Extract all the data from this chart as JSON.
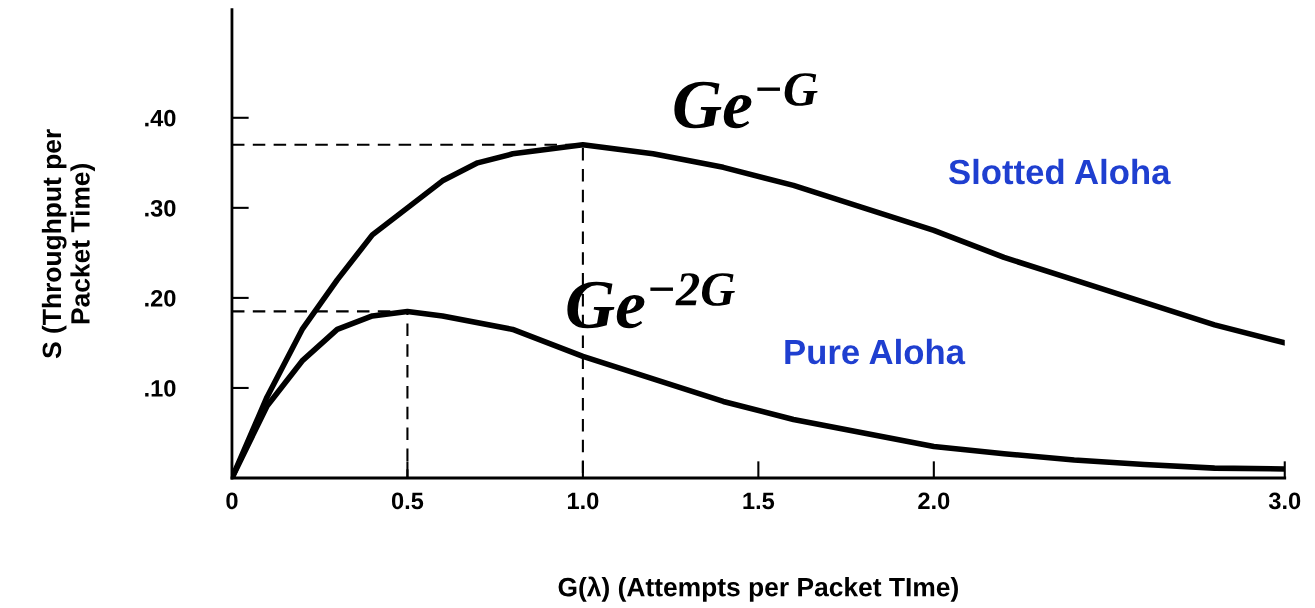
{
  "chart_data": {
    "type": "line",
    "xlabel": "G(λ) (Attempts per Packet TIme)",
    "ylabel": "S (Throughput per\nPacket Time)",
    "xlim": [
      0,
      3.0
    ],
    "ylim": [
      0,
      0.52
    ],
    "xticks": [
      0,
      0.5,
      {
        "value": 1.0,
        "label": "1.0"
      },
      1.5,
      {
        "value": 2.0,
        "label": "2.0"
      },
      {
        "value": 3.0,
        "label": "3.0"
      }
    ],
    "yticks": [
      {
        "value": 0.1,
        "label": ".10"
      },
      {
        "value": 0.2,
        "label": ".20"
      },
      {
        "value": 0.3,
        "label": ".30"
      },
      {
        "value": 0.4,
        "label": ".40"
      }
    ],
    "grid": false,
    "legend": false,
    "marker": "none",
    "series": [
      {
        "color": "#000000",
        "line_style": "solid",
        "x": [
          0,
          0.1,
          0.2,
          0.3,
          0.4,
          0.5,
          0.6,
          0.7,
          0.8,
          1.0,
          1.2,
          1.4,
          1.6,
          1.8,
          2.0,
          2.2,
          2.4,
          2.6,
          2.8,
          3.0
        ],
        "values": [
          0,
          0.09,
          0.165,
          0.22,
          0.27,
          0.3,
          0.33,
          0.35,
          0.36,
          0.37,
          0.36,
          0.345,
          0.325,
          0.3,
          0.275,
          0.245,
          0.22,
          0.195,
          0.17,
          0.15
        ]
      },
      {
        "color": "#000000",
        "line_style": "solid",
        "x": [
          0,
          0.1,
          0.2,
          0.3,
          0.4,
          0.5,
          0.6,
          0.8,
          1.0,
          1.2,
          1.4,
          1.6,
          1.8,
          2.0,
          2.2,
          2.4,
          2.6,
          2.8,
          3.0
        ],
        "values": [
          0,
          0.08,
          0.13,
          0.165,
          0.18,
          0.185,
          0.18,
          0.165,
          0.135,
          0.11,
          0.085,
          0.065,
          0.05,
          0.035,
          0.027,
          0.02,
          0.015,
          0.011,
          0.01
        ]
      },
      {
        "color": "#000000",
        "line_style": "dashed",
        "x": [
          0,
          1.0,
          1.0
        ],
        "values": [
          0.37,
          0.37,
          0
        ]
      },
      {
        "color": "#000000",
        "line_style": "dashed",
        "x": [
          0,
          0.5,
          0.5
        ],
        "values": [
          0.185,
          0.185,
          0
        ]
      }
    ],
    "annotations": [
      "Ge$^{−G}$",
      "Ge$^{−2G}$",
      "Slotted Aloha",
      "Pure Aloha"
    ]
  }
}
